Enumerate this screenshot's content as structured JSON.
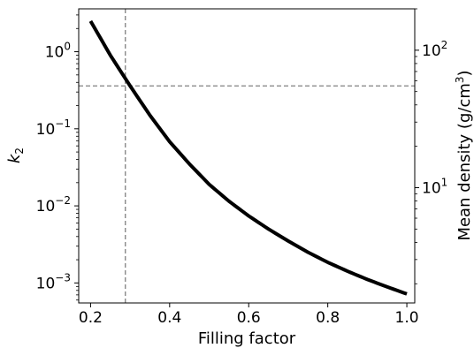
{
  "chart_data": {
    "type": "line",
    "title": "",
    "xlabel": "Filling factor",
    "ylabel_left": "k",
    "ylabel_left_sub": "2",
    "ylabel_right": "Mean density (g/cm",
    "ylabel_right_sup": "3",
    "ylabel_right_close": ")",
    "xlim": [
      0.17,
      1.02
    ],
    "ylim_left": [
      0.00055,
      3.6
    ],
    "ylim_right": [
      1.45,
      200
    ],
    "yscale_left": "log",
    "yscale_right": "log",
    "x_ticks": [
      0.2,
      0.4,
      0.6,
      0.8,
      1.0
    ],
    "x_tick_labels": [
      "0.2",
      "0.4",
      "0.6",
      "0.8",
      "1.0"
    ],
    "y_ticks_left": [
      {
        "base": "10",
        "exp": "0",
        "value": 1
      },
      {
        "base": "10",
        "exp": "−1",
        "value": 0.1
      },
      {
        "base": "10",
        "exp": "−2",
        "value": 0.01
      },
      {
        "base": "10",
        "exp": "−3",
        "value": 0.001
      }
    ],
    "y_ticks_right": [
      {
        "base": "10",
        "exp": "2",
        "value": 100
      },
      {
        "base": "10",
        "exp": "1",
        "value": 10
      }
    ],
    "grid": false,
    "series": [
      {
        "color": "#000000",
        "x": [
          0.2,
          0.25,
          0.3,
          0.35,
          0.4,
          0.45,
          0.5,
          0.55,
          0.6,
          0.65,
          0.7,
          0.75,
          0.8,
          0.85,
          0.9,
          0.95,
          1.0
        ],
        "y": [
          2.5,
          0.9,
          0.36,
          0.15,
          0.068,
          0.035,
          0.019,
          0.0115,
          0.0074,
          0.005,
          0.0035,
          0.0025,
          0.00185,
          0.00142,
          0.00111,
          0.00089,
          0.00072
        ]
      }
    ],
    "reference_lines": [
      {
        "orientation": "vertical",
        "x": 0.288,
        "style": "dashed",
        "color": "#808080"
      },
      {
        "orientation": "horizontal",
        "y": 0.36,
        "style": "dashed",
        "color": "#808080"
      }
    ]
  }
}
